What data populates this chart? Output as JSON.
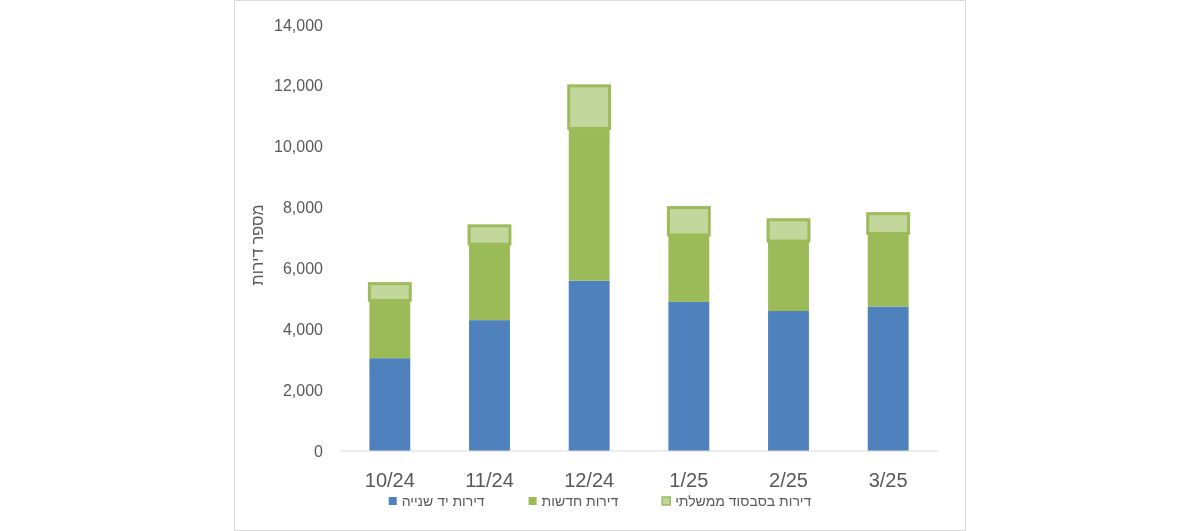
{
  "chart_data": {
    "type": "bar",
    "stacked": true,
    "ylabel": "מספר דירות",
    "categories": [
      "10/24",
      "11/24",
      "12/24",
      "1/25",
      "2/25",
      "3/25"
    ],
    "series": [
      {
        "name": "דירות יד שנייה",
        "color": "#4f81bd",
        "values": [
          3050,
          4300,
          5600,
          4900,
          4600,
          4750
        ]
      },
      {
        "name": "דירות חדשות",
        "color": "#9bbb59",
        "values": [
          1900,
          2500,
          5000,
          2200,
          2300,
          2400
        ]
      },
      {
        "name": "דירות בסבסוד ממשלתי",
        "color": "#c3d69b",
        "values": [
          550,
          600,
          1400,
          900,
          700,
          650
        ]
      }
    ],
    "ylim": [
      0,
      14000
    ],
    "yticks": [
      0,
      {
        "value": 2000,
        "label": "2,000"
      },
      {
        "value": 4000,
        "label": "4,000"
      },
      {
        "value": 6000,
        "label": "6,000"
      },
      {
        "value": 8000,
        "label": "8,000"
      },
      {
        "value": 10000,
        "label": "10,000"
      },
      {
        "value": 12000,
        "label": "12,000"
      },
      {
        "value": 14000,
        "label": "14,000"
      }
    ],
    "legend": "bottom"
  }
}
